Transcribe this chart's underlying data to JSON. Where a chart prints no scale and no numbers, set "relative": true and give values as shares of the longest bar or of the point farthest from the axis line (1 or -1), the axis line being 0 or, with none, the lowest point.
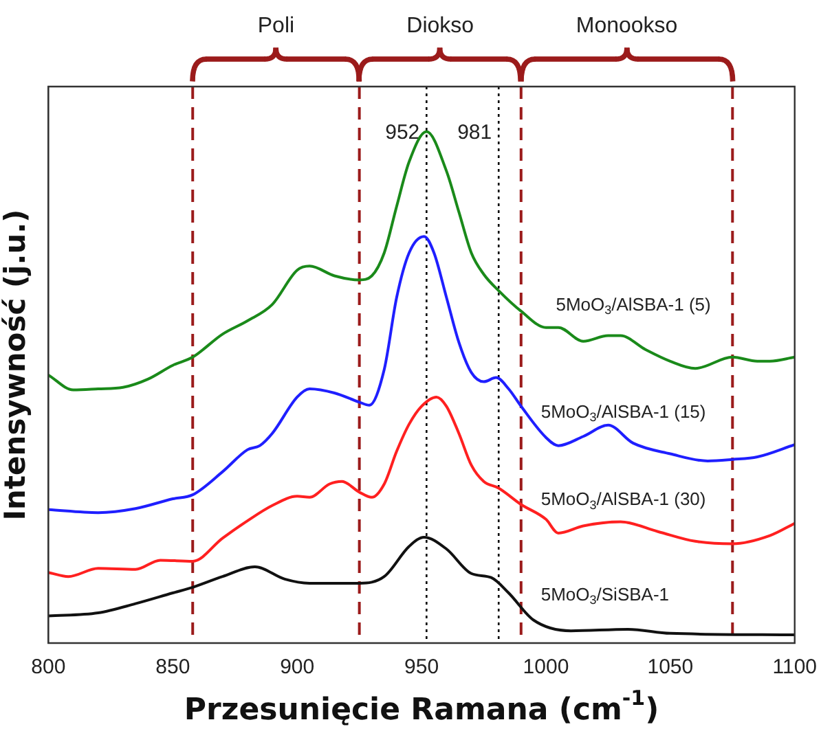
{
  "chart_data": {
    "type": "line",
    "relative": true,
    "xlabel": "Przesunięcie Ramana (cm$^{-1}$)",
    "ylabel": "Intensywność (j.u.)",
    "xlim": [
      800,
      1100
    ],
    "xticks": [
      800,
      850,
      900,
      950,
      1000,
      1050,
      1100
    ],
    "grid": false,
    "legend": false,
    "marker": "none",
    "line_style": "solid",
    "series": [
      {
        "name": "5MoO$_{3}$/AlSBA-1 (5)",
        "color": "#1a8a1a",
        "x": [
          800,
          810,
          820,
          830,
          840,
          850,
          858,
          870,
          880,
          890,
          900,
          905,
          915,
          925,
          930,
          935,
          940,
          945,
          952,
          960,
          965,
          970,
          975,
          981,
          990,
          1000,
          1005,
          1015,
          1025,
          1030,
          1040,
          1050,
          1060,
          1075,
          1085,
          1090,
          1100
        ],
        "values": [
          0.524,
          0.495,
          0.497,
          0.5,
          0.516,
          0.543,
          0.559,
          0.604,
          0.63,
          0.662,
          0.729,
          0.737,
          0.718,
          0.71,
          0.718,
          0.763,
          0.854,
          0.941,
          1,
          0.923,
          0.843,
          0.763,
          0.721,
          0.689,
          0.649,
          0.617,
          0.617,
          0.59,
          0.601,
          0.601,
          0.574,
          0.551,
          0.537,
          0.559,
          0.551,
          0.551,
          0.559
        ]
      },
      {
        "name": "5MoO$_{3}$/AlSBA-1 (15)",
        "color": "#1f1fff",
        "x": [
          800,
          820,
          835,
          850,
          858,
          870,
          880,
          885,
          890,
          900,
          905,
          915,
          925,
          929,
          935,
          940,
          945,
          951,
          955,
          960,
          965,
          970,
          975,
          980,
          985,
          990,
          1000,
          1005,
          1015,
          1025,
          1035,
          1050,
          1065,
          1075,
          1085,
          1100
        ],
        "values": [
          0.261,
          0.255,
          0.263,
          0.282,
          0.29,
          0.335,
          0.378,
          0.386,
          0.41,
          0.481,
          0.497,
          0.489,
          0.471,
          0.465,
          0.535,
          0.676,
          0.763,
          0.795,
          0.763,
          0.676,
          0.588,
          0.529,
          0.511,
          0.519,
          0.497,
          0.463,
          0.402,
          0.386,
          0.404,
          0.426,
          0.391,
          0.37,
          0.356,
          0.359,
          0.364,
          0.388
        ]
      },
      {
        "name": "5MoO$_{3}$/AlSBA-1 (30)",
        "color": "#ff2020",
        "x": [
          800,
          808,
          820,
          835,
          845,
          858,
          870,
          880,
          890,
          900,
          905,
          913,
          918,
          925,
          930,
          935,
          940,
          945,
          950,
          956,
          960,
          965,
          970,
          975,
          981,
          990,
          1000,
          1005,
          1015,
          1030,
          1045,
          1060,
          1075,
          1090,
          1100
        ],
        "values": [
          0.138,
          0.13,
          0.146,
          0.144,
          0.162,
          0.16,
          0.205,
          0.239,
          0.269,
          0.287,
          0.285,
          0.311,
          0.316,
          0.295,
          0.285,
          0.311,
          0.375,
          0.428,
          0.463,
          0.481,
          0.463,
          0.41,
          0.348,
          0.316,
          0.303,
          0.271,
          0.242,
          0.215,
          0.229,
          0.237,
          0.218,
          0.199,
          0.194,
          0.21,
          0.234
        ]
      },
      {
        "name": "5MoO$_{3}$/SiSBA-1",
        "color": "#111111",
        "x": [
          800,
          820,
          835,
          850,
          858,
          870,
          883,
          895,
          905,
          925,
          935,
          945,
          951,
          960,
          970,
          978,
          985,
          995,
          1010,
          1033,
          1050,
          1100
        ],
        "values": [
          0.053,
          0.059,
          0.077,
          0.098,
          0.109,
          0.13,
          0.149,
          0.125,
          0.117,
          0.117,
          0.13,
          0.189,
          0.207,
          0.184,
          0.136,
          0.128,
          0.098,
          0.045,
          0.024,
          0.027,
          0.019,
          0.016
        ]
      }
    ],
    "ref_lines": [
      {
        "axis": "x",
        "value": 858,
        "label": null,
        "color": "#9b1b1b",
        "line_style": "dashed"
      },
      {
        "axis": "x",
        "value": 925,
        "label": null,
        "color": "#9b1b1b",
        "line_style": "dashed"
      },
      {
        "axis": "x",
        "value": 990,
        "label": null,
        "color": "#9b1b1b",
        "line_style": "dashed"
      },
      {
        "axis": "x",
        "value": 1075,
        "label": null,
        "color": "#9b1b1b",
        "line_style": "dashed"
      },
      {
        "axis": "x",
        "value": 952,
        "label": "952",
        "color": "#000000",
        "line_style": "dotted"
      },
      {
        "axis": "x",
        "value": 981,
        "label": "981",
        "color": "#000000",
        "line_style": "dotted"
      }
    ],
    "annotations": [
      "Poli",
      "Diokso",
      "Monookso"
    ]
  }
}
